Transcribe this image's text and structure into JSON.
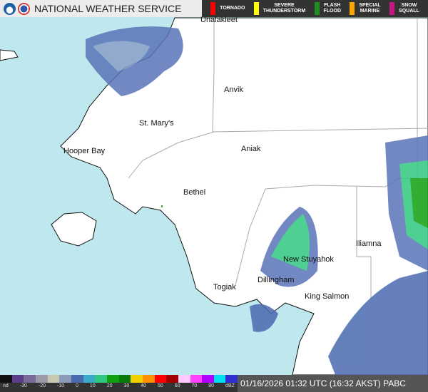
{
  "header": {
    "title": "NATIONAL WEATHER SERVICE",
    "logos": [
      "noaa-logo",
      "nws-logo"
    ]
  },
  "warnings": [
    {
      "label": "TORNADO",
      "color": "#ff0000"
    },
    {
      "label": "SEVERE\nTHUNDERSTORM",
      "color": "#ffff00"
    },
    {
      "label": "FLASH\nFLOOD",
      "color": "#228b22"
    },
    {
      "label": "SPECIAL\nMARINE",
      "color": "#ffa500"
    },
    {
      "label": "SNOW\nSQUALL",
      "color": "#c71585"
    }
  ],
  "places": [
    "Unalakleet",
    "Anvik",
    "St. Mary's",
    "Hooper Bay",
    "Aniak",
    "Bethel",
    "Iliamna",
    "New Stuyahok",
    "Dillingham",
    "Togiak",
    "King Salmon"
  ],
  "legend": {
    "ticks": [
      "nd",
      "-30",
      "-20",
      "-10",
      "0",
      "10",
      "20",
      "30",
      "40",
      "50",
      "60",
      "70",
      "80",
      "dBZ"
    ],
    "colors": [
      "#111",
      "#5a3e8a",
      "#7a6a9a",
      "#9a9aa8",
      "#c8c8b0",
      "#8a9ab8",
      "#4a6ab0",
      "#3aa8c8",
      "#30c880",
      "#10a010",
      "#0a7a0a",
      "#f0d000",
      "#ff9000",
      "#ff0000",
      "#a00000",
      "#ffc8ff",
      "#ff40ff",
      "#b000ff",
      "#00e0f0",
      "#3030d0"
    ]
  },
  "timestamp": "01/16/2026 01:32 UTC (16:32 AKST) PABC",
  "colors": {
    "water": "#bfe7ee",
    "land": "#ffffff"
  }
}
